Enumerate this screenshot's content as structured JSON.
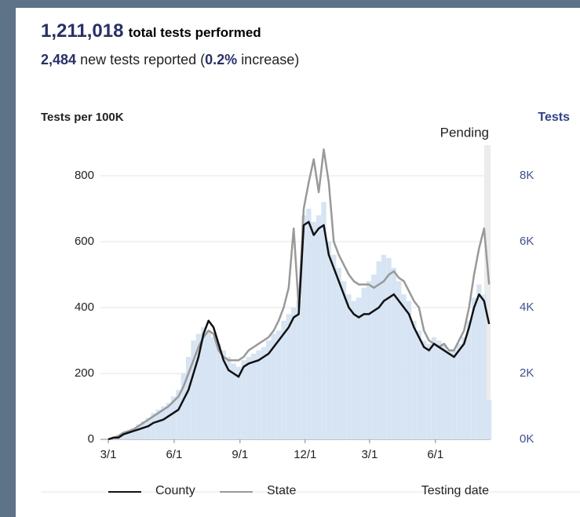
{
  "header": {
    "total": "1,211,018",
    "total_label": "total tests performed",
    "new": "2,484",
    "new_label": "new tests reported (",
    "increase": "0.2%",
    "increase_label": "increase)"
  },
  "chart_data": {
    "type": "line",
    "y_label": "Tests per 100K",
    "y2_label": "Tests",
    "x_label": "Testing date",
    "pending_label": "Pending",
    "x": [
      0,
      7,
      14,
      21,
      28,
      35,
      42,
      49,
      56,
      63,
      70,
      77,
      84,
      91,
      98,
      105,
      112,
      119,
      126,
      133,
      140,
      147,
      154,
      161,
      168,
      175,
      182,
      189,
      196,
      203,
      210,
      217,
      224,
      231,
      238,
      245,
      252,
      259,
      266,
      273,
      280,
      287,
      294,
      301,
      308,
      315,
      322,
      329,
      336,
      343,
      350,
      357,
      364,
      371,
      378,
      385,
      392,
      399,
      406,
      413,
      420,
      427,
      434,
      441,
      448,
      455,
      462,
      469,
      476,
      483,
      490,
      497,
      504,
      511,
      518,
      525,
      532
    ],
    "xlim": [
      0,
      534
    ],
    "xticks": [
      {
        "value": 0,
        "label": "3/1"
      },
      {
        "value": 92,
        "label": "6/1"
      },
      {
        "value": 184,
        "label": "9/1"
      },
      {
        "value": 275,
        "label": "12/1"
      },
      {
        "value": 365,
        "label": "3/1"
      },
      {
        "value": 457,
        "label": "6/1"
      }
    ],
    "ylim": [
      0,
      800
    ],
    "yticks": [
      0,
      200,
      400,
      600,
      800
    ],
    "y2lim": [
      0,
      8000
    ],
    "y2ticks": [
      {
        "value": 0,
        "label": "0K"
      },
      {
        "value": 2000,
        "label": "2K"
      },
      {
        "value": 4000,
        "label": "4K"
      },
      {
        "value": 6000,
        "label": "6K"
      },
      {
        "value": 8000,
        "label": "8K"
      }
    ],
    "grid": true,
    "series": [
      {
        "name": "Tests",
        "type": "bar",
        "axis": "y2",
        "color": "#d6e4f3",
        "values": [
          0,
          50,
          100,
          200,
          250,
          350,
          450,
          550,
          650,
          800,
          900,
          1000,
          1100,
          1300,
          1500,
          2000,
          2500,
          3000,
          3200,
          3400,
          3300,
          3100,
          2900,
          2700,
          2500,
          2300,
          2200,
          2400,
          2500,
          2600,
          2700,
          2800,
          3000,
          3200,
          3300,
          3600,
          3800,
          4000,
          4200,
          6800,
          7000,
          6600,
          6800,
          7200,
          6000,
          5600,
          5200,
          4800,
          4400,
          4200,
          4300,
          4600,
          4800,
          5000,
          5400,
          5600,
          5500,
          5200,
          4800,
          4400,
          4200,
          3600,
          3300,
          3000,
          2900,
          3100,
          3000,
          2900,
          2700,
          2700,
          2900,
          3100,
          3600,
          4300,
          4700,
          4400,
          1200
        ]
      },
      {
        "name": "County",
        "color": "#111111",
        "values": [
          0,
          5,
          5,
          15,
          20,
          25,
          30,
          35,
          40,
          50,
          55,
          60,
          70,
          80,
          90,
          120,
          150,
          200,
          250,
          320,
          360,
          340,
          290,
          240,
          210,
          200,
          190,
          220,
          230,
          235,
          240,
          250,
          260,
          280,
          300,
          320,
          340,
          370,
          380,
          650,
          660,
          620,
          640,
          650,
          560,
          520,
          480,
          440,
          400,
          380,
          370,
          380,
          380,
          390,
          400,
          420,
          430,
          440,
          420,
          400,
          380,
          340,
          310,
          280,
          270,
          290,
          280,
          270,
          260,
          250,
          270,
          290,
          340,
          400,
          440,
          420,
          350
        ]
      },
      {
        "name": "State",
        "color": "#999999",
        "values": [
          0,
          5,
          10,
          20,
          25,
          30,
          40,
          50,
          60,
          70,
          80,
          90,
          100,
          115,
          130,
          160,
          200,
          240,
          280,
          310,
          330,
          320,
          270,
          250,
          240,
          240,
          240,
          250,
          270,
          280,
          290,
          300,
          310,
          330,
          360,
          400,
          460,
          640,
          400,
          700,
          780,
          850,
          750,
          880,
          780,
          600,
          560,
          530,
          500,
          480,
          470,
          470,
          470,
          460,
          470,
          480,
          500,
          510,
          490,
          480,
          450,
          420,
          400,
          330,
          300,
          290,
          280,
          290,
          270,
          270,
          300,
          330,
          400,
          500,
          580,
          640,
          470
        ]
      }
    ]
  }
}
